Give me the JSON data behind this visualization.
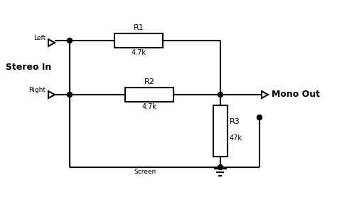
{
  "background_color": "#ffffff",
  "line_color": "#000000",
  "line_width": 1.5,
  "labels": {
    "stereo_in": "Stereo In",
    "mono_out": "Mono Out",
    "left": "Left",
    "right": "Right",
    "r1": "R1",
    "r2": "R2",
    "r3": "R3",
    "r1_val": "4.7k",
    "r2_val": "4.7k",
    "r3_val": "47k",
    "screen": "Screen"
  },
  "fig_w": 4.74,
  "fig_h": 2.81,
  "dpi": 100
}
